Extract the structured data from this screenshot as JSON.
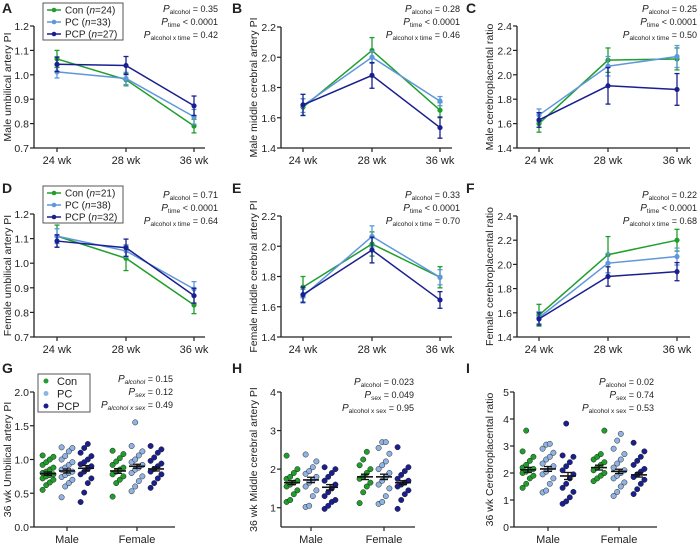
{
  "colors": {
    "Con": "#1f9e2c",
    "PC": "#5f97dc",
    "PCP": "#1a1f8f",
    "PC_point": "#8fb3e3",
    "axis": "#222222"
  },
  "chart_data": [
    {
      "panel": "A",
      "type": "line",
      "ylabel": "Male umbilical artery PI",
      "ylim": [
        0.7,
        1.2
      ],
      "yticks": [
        "0.7",
        "0.8",
        "0.9",
        "1.0",
        "1.1",
        "1.2"
      ],
      "categories": [
        "24 wk",
        "28 wk",
        "36 wk"
      ],
      "legend": [
        {
          "group": "Con",
          "n": "24"
        },
        {
          "group": "PC",
          "n": "33"
        },
        {
          "group": "PCP",
          "n": "27"
        }
      ],
      "series": [
        {
          "group": "Con",
          "values": [
            1.065,
            0.98,
            0.79
          ],
          "error": [
            0.035,
            0.025,
            0.028
          ]
        },
        {
          "group": "PC",
          "values": [
            1.012,
            0.985,
            0.828
          ],
          "error": [
            0.025,
            0.025,
            0.03
          ]
        },
        {
          "group": "PCP",
          "values": [
            1.043,
            1.038,
            0.873
          ],
          "error": [
            0.03,
            0.037,
            0.04
          ]
        }
      ],
      "stats": [
        {
          "sub": "alcohol",
          "text": " = 0.35"
        },
        {
          "sub": "time",
          "text": " < 0.0001"
        },
        {
          "sub": "alcohol x time",
          "text": " = 0.42"
        }
      ]
    },
    {
      "panel": "B",
      "type": "line",
      "ylabel": "Male middle cerebral artery PI",
      "ylim": [
        1.4,
        2.2
      ],
      "yticks": [
        "1.4",
        "1.6",
        "1.8",
        "2.0",
        "2.2"
      ],
      "categories": [
        "24 wk",
        "28 wk",
        "36 wk"
      ],
      "series": [
        {
          "group": "Con",
          "values": [
            1.67,
            2.045,
            1.65
          ],
          "error": [
            0.055,
            0.085,
            0.05
          ]
        },
        {
          "group": "PC",
          "values": [
            1.68,
            2.0,
            1.71
          ],
          "error": [
            0.045,
            0.04,
            0.03
          ]
        },
        {
          "group": "PCP",
          "values": [
            1.685,
            1.88,
            1.535
          ],
          "error": [
            0.07,
            0.085,
            0.07
          ]
        }
      ],
      "stats": [
        {
          "sub": "alcohol",
          "text": " = 0.28"
        },
        {
          "sub": "time",
          "text": " < 0.0001"
        },
        {
          "sub": "alcohol x time",
          "text": " = 0.46"
        }
      ]
    },
    {
      "panel": "C",
      "type": "line",
      "ylabel": "Male cerebroplacental ratio",
      "ylim": [
        1.4,
        2.4
      ],
      "yticks": [
        "1.4",
        "1.6",
        "1.8",
        "2.0",
        "2.2",
        "2.4"
      ],
      "categories": [
        "24 wk",
        "28 wk",
        "36 wk"
      ],
      "series": [
        {
          "group": "Con",
          "values": [
            1.6,
            2.12,
            2.13
          ],
          "error": [
            0.07,
            0.1,
            0.09
          ]
        },
        {
          "group": "PC",
          "values": [
            1.67,
            2.07,
            2.15
          ],
          "error": [
            0.05,
            0.08,
            0.09
          ]
        },
        {
          "group": "PCP",
          "values": [
            1.63,
            1.91,
            1.88
          ],
          "error": [
            0.06,
            0.15,
            0.13
          ]
        }
      ],
      "stats": [
        {
          "sub": "alcohol",
          "text": " = 0.25"
        },
        {
          "sub": "time",
          "text": " < 0.0001"
        },
        {
          "sub": "alcohol x time",
          "text": " = 0.50"
        }
      ]
    },
    {
      "panel": "D",
      "type": "line",
      "ylabel": "Female umbilical artery PI",
      "ylim": [
        0.7,
        1.2
      ],
      "yticks": [
        "0.7",
        "0.8",
        "0.9",
        "1.0",
        "1.1",
        "1.2"
      ],
      "categories": [
        "24 wk",
        "28 wk",
        "36 wk"
      ],
      "legend": [
        {
          "group": "Con",
          "n": "21"
        },
        {
          "group": "PC",
          "n": "38"
        },
        {
          "group": "PCP",
          "n": "32"
        }
      ],
      "series": [
        {
          "group": "Con",
          "values": [
            1.11,
            1.02,
            0.83
          ],
          "error": [
            0.045,
            0.05,
            0.035
          ]
        },
        {
          "group": "PC",
          "values": [
            1.11,
            1.05,
            0.895
          ],
          "error": [
            0.03,
            0.025,
            0.03
          ]
        },
        {
          "group": "PCP",
          "values": [
            1.09,
            1.063,
            0.868
          ],
          "error": [
            0.025,
            0.035,
            0.03
          ]
        }
      ],
      "stats": [
        {
          "sub": "alcohol",
          "text": " = 0.71"
        },
        {
          "sub": "time",
          "text": " < 0.0001"
        },
        {
          "sub": "alcohol x time",
          "text": " = 0.64"
        }
      ]
    },
    {
      "panel": "E",
      "type": "line",
      "ylabel": "Female middle cerebral artery PI",
      "ylim": [
        1.4,
        2.2
      ],
      "yticks": [
        "1.4",
        "1.6",
        "1.8",
        "2.0",
        "2.2"
      ],
      "categories": [
        "24 wk",
        "28 wk",
        "36 wk"
      ],
      "series": [
        {
          "group": "Con",
          "values": [
            1.73,
            2.015,
            1.795
          ],
          "error": [
            0.07,
            0.08,
            0.07
          ]
        },
        {
          "group": "PC",
          "values": [
            1.67,
            2.065,
            1.795
          ],
          "error": [
            0.045,
            0.07,
            0.05
          ]
        },
        {
          "group": "PCP",
          "values": [
            1.68,
            1.975,
            1.645
          ],
          "error": [
            0.05,
            0.085,
            0.055
          ]
        }
      ],
      "stats": [
        {
          "sub": "alcohol",
          "text": " = 0.33"
        },
        {
          "sub": "time",
          "text": " < 0.0001"
        },
        {
          "sub": "alcohol x time",
          "text": " = 0.70"
        }
      ]
    },
    {
      "panel": "F",
      "type": "line",
      "ylabel": "Female cerebroplacental ratio",
      "ylim": [
        1.4,
        2.4
      ],
      "yticks": [
        "1.4",
        "1.6",
        "1.8",
        "2.0",
        "2.2",
        "2.4"
      ],
      "categories": [
        "24 wk",
        "28 wk",
        "36 wk"
      ],
      "series": [
        {
          "group": "Con",
          "values": [
            1.58,
            2.08,
            2.2
          ],
          "error": [
            0.09,
            0.15,
            0.09
          ]
        },
        {
          "group": "PC",
          "values": [
            1.56,
            2.01,
            2.065
          ],
          "error": [
            0.05,
            0.08,
            0.07
          ]
        },
        {
          "group": "PCP",
          "values": [
            1.55,
            1.9,
            1.94
          ],
          "error": [
            0.05,
            0.08,
            0.075
          ]
        }
      ],
      "stats": [
        {
          "sub": "alcohol",
          "text": " = 0.22"
        },
        {
          "sub": "time",
          "text": " < 0.0001"
        },
        {
          "sub": "alcohol x time",
          "text": " = 0.68"
        }
      ]
    },
    {
      "panel": "G",
      "type": "scatter",
      "ylabel": "36 wk Umbilical artery PI",
      "ylim": [
        0,
        2.0
      ],
      "yticks": [
        "0.0",
        "0.5",
        "1.0",
        "1.5",
        "2.0"
      ],
      "categories": [
        "Male",
        "Female"
      ],
      "legend": [
        {
          "group": "Con"
        },
        {
          "group": "PC"
        },
        {
          "group": "PCP"
        }
      ],
      "groups": [
        {
          "sex": "Male",
          "group": "Con",
          "mean": 0.79,
          "sem": 0.025,
          "values": [
            0.55,
            0.62,
            0.66,
            0.7,
            0.72,
            0.75,
            0.77,
            0.78,
            0.8,
            0.82,
            0.85,
            0.88,
            0.92,
            0.96,
            1.0,
            1.04,
            1.06
          ]
        },
        {
          "sex": "Male",
          "group": "PC",
          "mean": 0.83,
          "sem": 0.03,
          "values": [
            0.44,
            0.6,
            0.65,
            0.7,
            0.74,
            0.77,
            0.8,
            0.82,
            0.85,
            0.88,
            0.92,
            0.96,
            1.0,
            1.05,
            1.12,
            1.17,
            1.18
          ]
        },
        {
          "sex": "Male",
          "group": "PCP",
          "mean": 0.87,
          "sem": 0.04,
          "values": [
            0.37,
            0.51,
            0.65,
            0.72,
            0.78,
            0.82,
            0.86,
            0.9,
            0.93,
            0.96,
            1.0,
            1.05,
            1.1,
            1.17,
            1.23
          ]
        },
        {
          "sex": "Female",
          "group": "Con",
          "mean": 0.83,
          "sem": 0.035,
          "values": [
            0.45,
            0.65,
            0.7,
            0.75,
            0.78,
            0.82,
            0.85,
            0.88,
            0.92,
            0.97,
            1.02,
            1.08,
            1.13
          ]
        },
        {
          "sex": "Female",
          "group": "PC",
          "mean": 0.9,
          "sem": 0.03,
          "values": [
            0.53,
            0.6,
            0.68,
            0.75,
            0.8,
            0.85,
            0.88,
            0.92,
            0.96,
            1.0,
            1.06,
            1.12,
            1.2,
            1.55
          ]
        },
        {
          "sex": "Female",
          "group": "PCP",
          "mean": 0.86,
          "sem": 0.03,
          "values": [
            0.58,
            0.65,
            0.72,
            0.78,
            0.82,
            0.86,
            0.9,
            0.94,
            0.98,
            1.03,
            1.1,
            1.15,
            1.2
          ]
        }
      ],
      "stats": [
        {
          "sub": "alcohol",
          "text": " = 0.15"
        },
        {
          "sub": "sex",
          "text": " = 0.12"
        },
        {
          "sub": "alcohol x sex",
          "text": " = 0.49"
        }
      ]
    },
    {
      "panel": "H",
      "type": "scatter",
      "ylabel": "36 wk Middle cerebral artery PI",
      "ylim": [
        0.5,
        4
      ],
      "yticks": [
        "1",
        "2",
        "3",
        "4"
      ],
      "ytick_values": [
        1,
        2,
        3,
        4
      ],
      "categories": [
        "Male",
        "Female"
      ],
      "groups": [
        {
          "sex": "Male",
          "group": "Con",
          "mean": 1.65,
          "sem": 0.05,
          "values": [
            1.15,
            1.2,
            1.35,
            1.45,
            1.55,
            1.6,
            1.65,
            1.7,
            1.75,
            1.8,
            1.9,
            2.0,
            2.35
          ]
        },
        {
          "sex": "Male",
          "group": "PC",
          "mean": 1.72,
          "sem": 0.07,
          "values": [
            1.02,
            1.05,
            1.3,
            1.45,
            1.55,
            1.65,
            1.72,
            1.8,
            1.88,
            1.95,
            2.05,
            2.2,
            2.38
          ]
        },
        {
          "sex": "Male",
          "group": "PCP",
          "mean": 1.53,
          "sem": 0.07,
          "values": [
            0.97,
            1.05,
            1.15,
            1.2,
            1.3,
            1.4,
            1.5,
            1.6,
            1.7,
            1.8,
            1.9,
            2.0,
            2.05
          ]
        },
        {
          "sex": "Female",
          "group": "Con",
          "mean": 1.8,
          "sem": 0.07,
          "values": [
            1.12,
            1.4,
            1.55,
            1.65,
            1.75,
            1.8,
            1.9,
            2.0,
            2.1,
            2.25,
            2.45
          ]
        },
        {
          "sex": "Female",
          "group": "PC",
          "mean": 1.8,
          "sem": 0.07,
          "values": [
            1.1,
            1.15,
            1.3,
            1.5,
            1.6,
            1.7,
            1.8,
            1.9,
            2.0,
            2.1,
            2.2,
            2.4,
            2.55,
            2.7,
            2.7
          ]
        },
        {
          "sex": "Female",
          "group": "PCP",
          "mean": 1.65,
          "sem": 0.05,
          "values": [
            0.97,
            1.2,
            1.35,
            1.45,
            1.55,
            1.6,
            1.65,
            1.7,
            1.75,
            1.85,
            1.95,
            2.05,
            2.57
          ]
        }
      ],
      "stats": [
        {
          "sub": "alcohol",
          "text": " = 0.023"
        },
        {
          "sub": "sex",
          "text": " = 0.049"
        },
        {
          "sub": "alcohol x sex",
          "text": " = 0.95"
        }
      ]
    },
    {
      "panel": "I",
      "type": "scatter",
      "ylabel": "36 wk Cerebroplacental ratio",
      "ylim": [
        0,
        5
      ],
      "yticks": [
        "0",
        "1",
        "2",
        "3",
        "4",
        "5"
      ],
      "categories": [
        "Male",
        "Female"
      ],
      "groups": [
        {
          "sex": "Male",
          "group": "Con",
          "mean": 2.12,
          "sem": 0.09,
          "values": [
            1.45,
            1.6,
            1.8,
            1.9,
            2.0,
            2.05,
            2.1,
            2.15,
            2.2,
            2.3,
            2.45,
            2.6,
            2.8,
            3.57
          ]
        },
        {
          "sex": "Male",
          "group": "PC",
          "mean": 2.15,
          "sem": 0.09,
          "values": [
            1.28,
            1.35,
            1.6,
            1.8,
            1.95,
            2.05,
            2.15,
            2.25,
            2.35,
            2.5,
            2.6,
            2.75,
            2.9,
            3.05,
            3.08
          ]
        },
        {
          "sex": "Male",
          "group": "PCP",
          "mean": 1.89,
          "sem": 0.13,
          "values": [
            0.86,
            0.95,
            1.1,
            1.3,
            1.45,
            1.6,
            1.8,
            1.95,
            2.1,
            2.25,
            2.4,
            2.6,
            2.65,
            3.83
          ]
        },
        {
          "sex": "Female",
          "group": "Con",
          "mean": 2.2,
          "sem": 0.09,
          "values": [
            1.7,
            1.8,
            1.9,
            2.0,
            2.1,
            2.2,
            2.3,
            2.4,
            2.5,
            2.6,
            2.7,
            3.57
          ]
        },
        {
          "sex": "Female",
          "group": "PC",
          "mean": 2.06,
          "sem": 0.08,
          "values": [
            1.15,
            1.3,
            1.5,
            1.65,
            1.8,
            1.9,
            2.0,
            2.1,
            2.2,
            2.35,
            2.5,
            2.7,
            2.9,
            3.2,
            3.45
          ]
        },
        {
          "sex": "Female",
          "group": "PCP",
          "mean": 1.93,
          "sem": 0.08,
          "values": [
            1.22,
            1.4,
            1.6,
            1.75,
            1.85,
            1.95,
            2.05,
            2.15,
            2.3,
            2.45,
            2.6,
            2.8,
            3.12
          ]
        }
      ],
      "stats": [
        {
          "sub": "alcohol",
          "text": " = 0.02"
        },
        {
          "sub": "sex",
          "text": " = 0.74"
        },
        {
          "sub": "alcohol x sex",
          "text": " = 0.53"
        }
      ]
    }
  ]
}
